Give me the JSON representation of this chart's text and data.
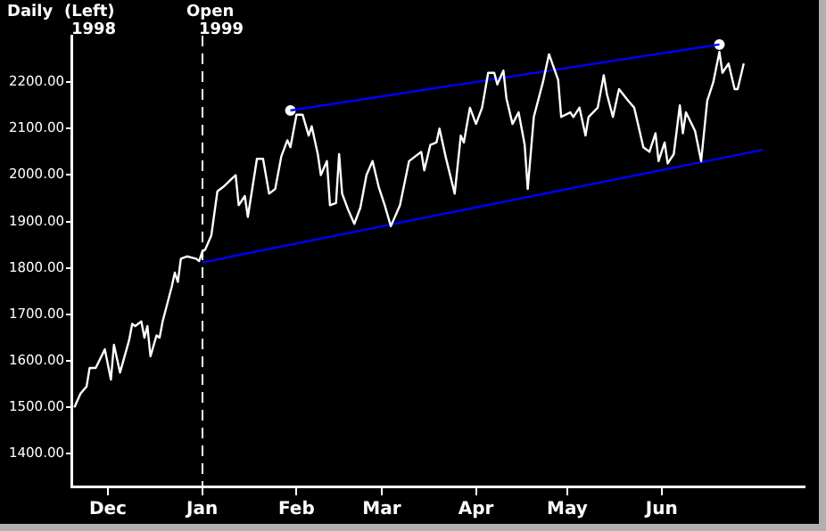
{
  "chart_data": {
    "type": "line",
    "annotations": [
      "Daily",
      "(Left)",
      "1998"
    ],
    "xlim": [
      "1998-11-19",
      "1999-07-18"
    ],
    "xticks": [
      {
        "value": "1998-12-01",
        "label": "Dec"
      },
      {
        "value": "1999-01-01",
        "label": "Jan"
      },
      {
        "value": "1999-02-01",
        "label": "Feb"
      },
      {
        "value": "1999-03-01",
        "label": "Mar"
      },
      {
        "value": "1999-04-01",
        "label": "Apr"
      },
      {
        "value": "1999-05-01",
        "label": "May"
      },
      {
        "value": "1999-06-01",
        "label": "Jun"
      }
    ],
    "ylim": [
      1330,
      2300
    ],
    "yticks": [
      {
        "value": 1400,
        "label": "1400.00"
      },
      {
        "value": 1500,
        "label": "1500.00"
      },
      {
        "value": 1600,
        "label": "1600.00"
      },
      {
        "value": 1700,
        "label": "1700.00"
      },
      {
        "value": 1800,
        "label": "1800.00"
      },
      {
        "value": 1900,
        "label": "1900.00"
      },
      {
        "value": 2000,
        "label": "2000.00"
      },
      {
        "value": 2100,
        "label": "2100.00"
      },
      {
        "value": 2200,
        "label": "2200.00"
      }
    ],
    "grid": false,
    "legend": false,
    "marker": "none",
    "ref_lines": [
      {
        "axis": "x",
        "value": "1999-01-01",
        "label": "Open 1999",
        "color": "#ffffff",
        "line_style": "dashed"
      }
    ],
    "series": [
      {
        "type": "line",
        "color": "#ffffff",
        "x": [
          "1998-11-20",
          "1998-11-22",
          "1998-11-24",
          "1998-11-25",
          "1998-11-27",
          "1998-11-30",
          "1998-12-02",
          "1998-12-03",
          "1998-12-05",
          "1998-12-08",
          "1998-12-09",
          "1998-12-10",
          "1998-12-12",
          "1998-12-13",
          "1998-12-14",
          "1998-12-15",
          "1998-12-17",
          "1998-12-18",
          "1998-12-19",
          "1998-12-22",
          "1998-12-23",
          "1998-12-24",
          "1998-12-25",
          "1998-12-27",
          "1998-12-30",
          "1998-12-31",
          "1999-01-01",
          "1999-01-02",
          "1999-01-04",
          "1999-01-06",
          "1999-01-08",
          "1999-01-12",
          "1999-01-13",
          "1999-01-15",
          "1999-01-16",
          "1999-01-19",
          "1999-01-21",
          "1999-01-23",
          "1999-01-25",
          "1999-01-27",
          "1999-01-29",
          "1999-01-30",
          "1999-02-01",
          "1999-02-03",
          "1999-02-05",
          "1999-02-06",
          "1999-02-08",
          "1999-02-09",
          "1999-02-11",
          "1999-02-12",
          "1999-02-14",
          "1999-02-15",
          "1999-02-16",
          "1999-02-18",
          "1999-02-20",
          "1999-02-22",
          "1999-02-24",
          "1999-02-26",
          "1999-02-28",
          "1999-03-02",
          "1999-03-04",
          "1999-03-07",
          "1999-03-10",
          "1999-03-12",
          "1999-03-14",
          "1999-03-15",
          "1999-03-17",
          "1999-03-19",
          "1999-03-20",
          "1999-03-22",
          "1999-03-25",
          "1999-03-27",
          "1999-03-28",
          "1999-03-30",
          "1999-04-01",
          "1999-04-03",
          "1999-04-05",
          "1999-04-07",
          "1999-04-08",
          "1999-04-10",
          "1999-04-11",
          "1999-04-13",
          "1999-04-15",
          "1999-04-17",
          "1999-04-18",
          "1999-04-20",
          "1999-04-23",
          "1999-04-25",
          "1999-04-28",
          "1999-04-29",
          "1999-05-02",
          "1999-05-03",
          "1999-05-05",
          "1999-05-07",
          "1999-05-08",
          "1999-05-11",
          "1999-05-13",
          "1999-05-14",
          "1999-05-16",
          "1999-05-18",
          "1999-05-21",
          "1999-05-23",
          "1999-05-26",
          "1999-05-28",
          "1999-05-30",
          "1999-05-31",
          "1999-06-02",
          "1999-06-03",
          "1999-06-05",
          "1999-06-07",
          "1999-06-08",
          "1999-06-09",
          "1999-06-12",
          "1999-06-14",
          "1999-06-16",
          "1999-06-18",
          "1999-06-20",
          "1999-06-21",
          "1999-06-23",
          "1999-06-25",
          "1999-06-26",
          "1999-06-28"
        ],
        "values": [
          1500,
          1530,
          1545,
          1585,
          1585,
          1625,
          1560,
          1635,
          1575,
          1645,
          1680,
          1675,
          1685,
          1650,
          1675,
          1610,
          1655,
          1650,
          1685,
          1760,
          1790,
          1770,
          1820,
          1825,
          1820,
          1815,
          1835,
          1840,
          1870,
          1965,
          1975,
          2000,
          1935,
          1955,
          1910,
          2035,
          2035,
          1960,
          1970,
          2040,
          2075,
          2060,
          2130,
          2130,
          2085,
          2105,
          2045,
          2000,
          2030,
          1935,
          1940,
          2045,
          1960,
          1925,
          1895,
          1930,
          2000,
          2030,
          1975,
          1935,
          1890,
          1935,
          2030,
          2040,
          2050,
          2010,
          2065,
          2070,
          2100,
          2040,
          1960,
          2085,
          2070,
          2145,
          2110,
          2145,
          2220,
          2220,
          2195,
          2225,
          2165,
          2110,
          2135,
          2065,
          1970,
          2125,
          2200,
          2260,
          2205,
          2125,
          2135,
          2125,
          2145,
          2085,
          2125,
          2145,
          2215,
          2175,
          2125,
          2185,
          2160,
          2145,
          2060,
          2050,
          2090,
          2030,
          2070,
          2025,
          2045,
          2150,
          2090,
          2135,
          2095,
          2030,
          2160,
          2200,
          2265,
          2220,
          2240,
          2185,
          2185,
          2240
        ]
      },
      {
        "type": "line",
        "color": "#0000ff",
        "x": [
          "1999-01-01",
          "1999-07-04"
        ],
        "values": [
          1812,
          2054
        ]
      },
      {
        "type": "line",
        "color": "#0000ff",
        "x": [
          "1999-01-30",
          "1999-06-20"
        ],
        "values": [
          2139,
          2281
        ]
      },
      {
        "type": "scatter",
        "color": "#ffffff",
        "marker": "circle",
        "x": [
          "1999-01-30",
          "1999-06-20"
        ],
        "values": [
          2139,
          2281
        ]
      }
    ]
  }
}
